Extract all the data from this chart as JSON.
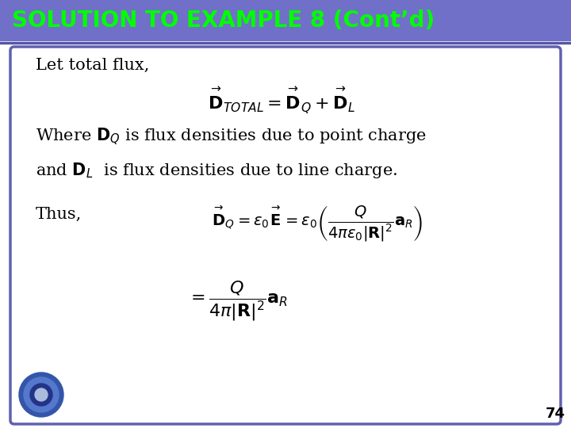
{
  "title": "SOLUTION TO EXAMPLE 8 (Cont’d)",
  "title_bg_color": "#7070C8",
  "title_text_color": "#00FF00",
  "slide_bg_color": "#FFFFFF",
  "border_color": "#6060B0",
  "line_color": "#5555AA",
  "page_number": "74",
  "line1": "Let total flux,",
  "line2": "Where $\\mathbf{D}_{Q}$ is flux densities due to point charge",
  "line3": "and $\\mathbf{D}_{L}$  is flux densities due to line charge.",
  "line4": "Thus,",
  "formula1": "$\\overset{\\rightarrow}{\\mathbf{D}}_{TOTAL} = \\overset{\\rightarrow}{\\mathbf{D}}_{Q}+\\overset{\\rightarrow}{\\mathbf{D}}_{L}$",
  "formula2": "$\\overset{\\rightarrow}{\\mathbf{D}}_Q = \\varepsilon_0\\overset{\\rightarrow}{\\mathbf{E}} = \\varepsilon_0\\left(\\dfrac{Q}{4\\pi\\varepsilon_0|\\mathbf{R}|^2}\\mathbf{a}_R\\right)$",
  "formula3": "$= \\dfrac{Q}{4\\pi|\\mathbf{R}|^2}\\mathbf{a}_R$"
}
